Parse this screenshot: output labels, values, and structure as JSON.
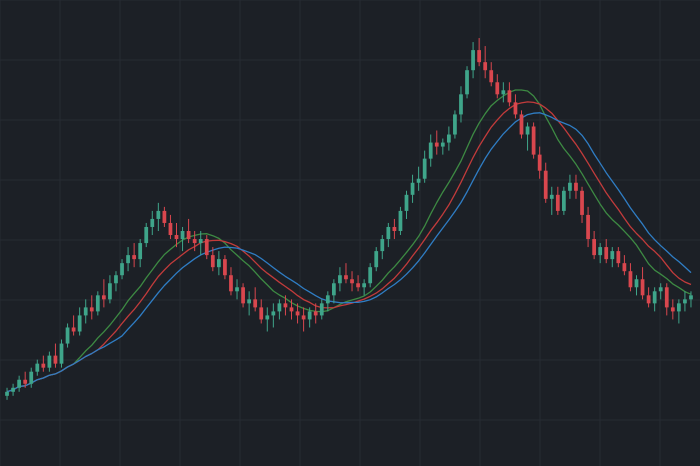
{
  "chart_data": {
    "type": "candlestick",
    "title": "",
    "xlabel": "",
    "ylabel": "",
    "ylim": [
      0,
      100
    ],
    "grid": true,
    "legend": "none",
    "colors": {
      "background": "#1c2026",
      "grid": "#262b33",
      "up": "#3fa58a",
      "down": "#d9474e",
      "ma_fast": "#3d8a43",
      "ma_mid": "#c23b3b",
      "ma_slow": "#2f7dc4"
    },
    "x": [
      1,
      2,
      3,
      4,
      5,
      6,
      7,
      8,
      9,
      10,
      11,
      12,
      13,
      14,
      15,
      16,
      17,
      18,
      19,
      20,
      21,
      22,
      23,
      24,
      25,
      26,
      27,
      28,
      29,
      30,
      31,
      32,
      33,
      34,
      35,
      36,
      37,
      38,
      39,
      40,
      41,
      42,
      43,
      44,
      45,
      46,
      47,
      48,
      49,
      50,
      51,
      52,
      53,
      54,
      55,
      56,
      57,
      58,
      59,
      60,
      61,
      62,
      63,
      64,
      65,
      66,
      67,
      68,
      69,
      70,
      71,
      72,
      73,
      74,
      75,
      76,
      77,
      78,
      79,
      80,
      81,
      82,
      83,
      84,
      85,
      86,
      87,
      88,
      89,
      90,
      91,
      92,
      93,
      94,
      95,
      96,
      97,
      98,
      99,
      100,
      101,
      102,
      103,
      104,
      105,
      106,
      107,
      108,
      109,
      110,
      111,
      112,
      113,
      114
    ],
    "ohlc": [
      [
        9,
        11,
        8,
        10
      ],
      [
        10,
        12,
        9,
        11
      ],
      [
        11,
        14,
        10,
        13
      ],
      [
        13,
        15,
        11,
        12
      ],
      [
        12,
        16,
        11,
        15
      ],
      [
        15,
        18,
        14,
        17
      ],
      [
        17,
        19,
        15,
        16
      ],
      [
        16,
        20,
        15,
        19
      ],
      [
        19,
        22,
        16,
        17
      ],
      [
        17,
        23,
        16,
        22
      ],
      [
        22,
        27,
        21,
        26
      ],
      [
        26,
        29,
        24,
        25
      ],
      [
        25,
        31,
        24,
        29
      ],
      [
        29,
        33,
        27,
        31
      ],
      [
        31,
        34,
        28,
        30
      ],
      [
        30,
        35,
        29,
        34
      ],
      [
        34,
        38,
        31,
        33
      ],
      [
        33,
        39,
        32,
        37
      ],
      [
        37,
        40,
        35,
        39
      ],
      [
        39,
        43,
        38,
        42
      ],
      [
        42,
        46,
        40,
        44
      ],
      [
        44,
        47,
        41,
        43
      ],
      [
        43,
        48,
        41,
        47
      ],
      [
        47,
        52,
        46,
        51
      ],
      [
        51,
        55,
        49,
        53
      ],
      [
        53,
        57,
        50,
        55
      ],
      [
        55,
        56,
        51,
        52
      ],
      [
        52,
        54,
        48,
        49
      ],
      [
        49,
        52,
        46,
        48
      ],
      [
        48,
        51,
        45,
        50
      ],
      [
        50,
        53,
        47,
        48
      ],
      [
        48,
        50,
        45,
        47
      ],
      [
        47,
        50,
        44,
        48
      ],
      [
        48,
        49,
        43,
        44
      ],
      [
        44,
        46,
        40,
        41
      ],
      [
        41,
        45,
        39,
        43
      ],
      [
        43,
        44,
        38,
        39
      ],
      [
        39,
        41,
        34,
        35
      ],
      [
        35,
        38,
        33,
        36
      ],
      [
        36,
        37,
        31,
        32
      ],
      [
        32,
        35,
        29,
        33
      ],
      [
        33,
        36,
        30,
        31
      ],
      [
        31,
        33,
        27,
        28
      ],
      [
        28,
        31,
        25,
        29
      ],
      [
        29,
        32,
        26,
        30
      ],
      [
        30,
        33,
        28,
        32
      ],
      [
        32,
        34,
        29,
        31
      ],
      [
        31,
        33,
        28,
        30
      ],
      [
        30,
        32,
        27,
        29
      ],
      [
        29,
        31,
        25,
        28
      ],
      [
        28,
        31,
        26,
        30
      ],
      [
        30,
        32,
        27,
        29
      ],
      [
        29,
        33,
        28,
        32
      ],
      [
        32,
        35,
        30,
        34
      ],
      [
        34,
        38,
        32,
        37
      ],
      [
        37,
        41,
        35,
        39
      ],
      [
        39,
        42,
        37,
        38
      ],
      [
        38,
        40,
        35,
        37
      ],
      [
        37,
        39,
        35,
        36
      ],
      [
        36,
        38,
        34,
        37
      ],
      [
        37,
        42,
        36,
        41
      ],
      [
        41,
        46,
        40,
        45
      ],
      [
        45,
        49,
        43,
        48
      ],
      [
        48,
        52,
        46,
        51
      ],
      [
        51,
        53,
        48,
        50
      ],
      [
        50,
        56,
        49,
        55
      ],
      [
        55,
        60,
        53,
        59
      ],
      [
        59,
        64,
        57,
        62
      ],
      [
        62,
        66,
        60,
        63
      ],
      [
        63,
        70,
        62,
        68
      ],
      [
        68,
        74,
        66,
        72
      ],
      [
        72,
        75,
        69,
        71
      ],
      [
        71,
        73,
        69,
        72
      ],
      [
        72,
        76,
        70,
        74
      ],
      [
        74,
        80,
        73,
        79
      ],
      [
        79,
        86,
        77,
        84
      ],
      [
        84,
        91,
        83,
        90
      ],
      [
        90,
        97,
        88,
        95
      ],
      [
        95,
        98,
        91,
        92
      ],
      [
        92,
        96,
        88,
        90
      ],
      [
        90,
        92,
        86,
        87
      ],
      [
        87,
        89,
        83,
        84
      ],
      [
        84,
        87,
        82,
        85
      ],
      [
        85,
        87,
        81,
        82
      ],
      [
        82,
        84,
        78,
        79
      ],
      [
        79,
        80,
        73,
        74
      ],
      [
        74,
        77,
        70,
        76
      ],
      [
        76,
        77,
        68,
        69
      ],
      [
        69,
        71,
        63,
        65
      ],
      [
        65,
        67,
        57,
        58
      ],
      [
        58,
        61,
        54,
        59
      ],
      [
        59,
        61,
        54,
        55
      ],
      [
        55,
        61,
        54,
        60
      ],
      [
        60,
        64,
        58,
        62
      ],
      [
        62,
        64,
        58,
        60
      ],
      [
        60,
        61,
        52,
        54
      ],
      [
        54,
        56,
        46,
        48
      ],
      [
        48,
        50,
        43,
        44
      ],
      [
        44,
        47,
        42,
        46
      ],
      [
        46,
        48,
        42,
        43
      ],
      [
        43,
        46,
        41,
        45
      ],
      [
        45,
        46,
        41,
        42
      ],
      [
        42,
        44,
        39,
        40
      ],
      [
        40,
        42,
        35,
        36
      ],
      [
        36,
        39,
        34,
        38
      ],
      [
        38,
        41,
        33,
        34
      ],
      [
        34,
        36,
        31,
        32
      ],
      [
        32,
        36,
        30,
        35
      ],
      [
        35,
        37,
        33,
        36
      ],
      [
        36,
        37,
        29,
        31
      ],
      [
        31,
        33,
        28,
        30
      ],
      [
        30,
        33,
        27,
        32
      ],
      [
        32,
        35,
        30,
        33
      ],
      [
        33,
        35,
        31,
        34
      ]
    ]
  }
}
